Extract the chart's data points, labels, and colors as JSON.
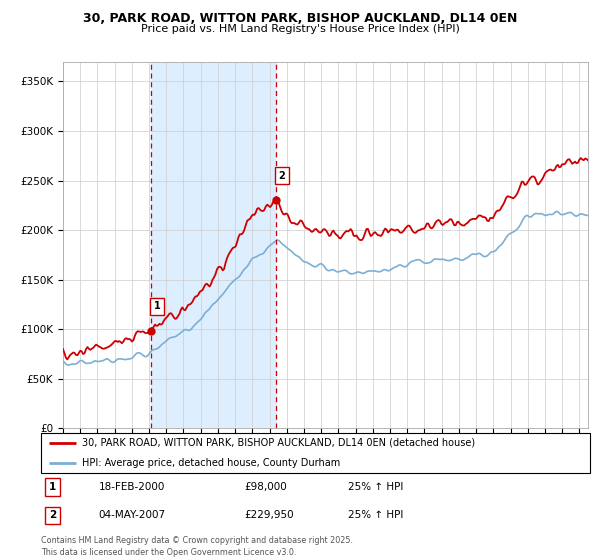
{
  "title_line1": "30, PARK ROAD, WITTON PARK, BISHOP AUCKLAND, DL14 0EN",
  "title_line2": "Price paid vs. HM Land Registry's House Price Index (HPI)",
  "ytick_values": [
    0,
    50000,
    100000,
    150000,
    200000,
    250000,
    300000,
    350000
  ],
  "ylim": [
    0,
    370000
  ],
  "xlim_start": 1995.0,
  "xlim_end": 2025.5,
  "sale1_date": 2000.12,
  "sale1_price": 98000,
  "sale2_date": 2007.37,
  "sale2_price": 229950,
  "red_line_color": "#cc0000",
  "blue_line_color": "#7bafd4",
  "shade_color": "#ddeeff",
  "dashed_vline_color": "#cc0000",
  "background_color": "#ffffff",
  "grid_color": "#cccccc",
  "legend_line1": "30, PARK ROAD, WITTON PARK, BISHOP AUCKLAND, DL14 0EN (detached house)",
  "legend_line2": "HPI: Average price, detached house, County Durham",
  "table_row1": [
    "1",
    "18-FEB-2000",
    "£98,000",
    "25% ↑ HPI"
  ],
  "table_row2": [
    "2",
    "04-MAY-2007",
    "£229,950",
    "25% ↑ HPI"
  ],
  "footer": "Contains HM Land Registry data © Crown copyright and database right 2025.\nThis data is licensed under the Open Government Licence v3.0."
}
